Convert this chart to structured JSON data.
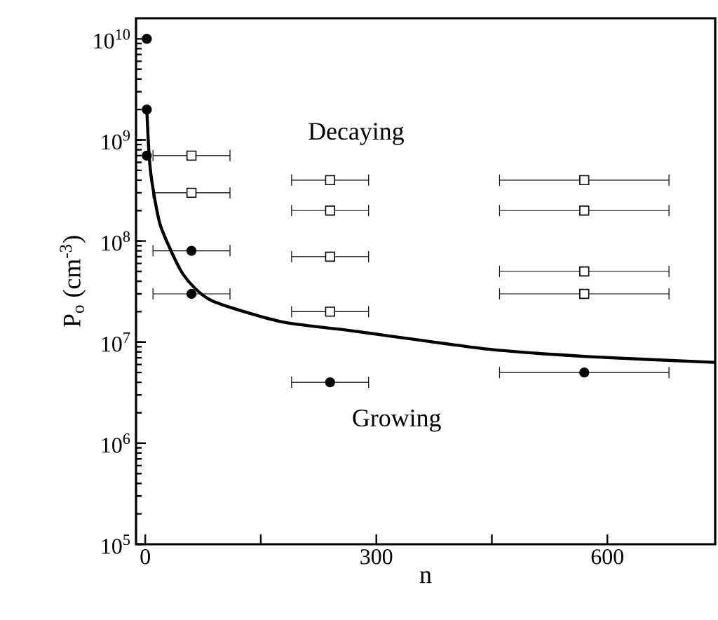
{
  "chart_data": {
    "type": "scatter",
    "xlabel": "n",
    "ylabel": "P$_{o}$ (cm$^{-3}$)",
    "log": "y",
    "xlim": [
      -12,
      740
    ],
    "ylim": [
      100000,
      16000000000
    ],
    "xticks": [
      0,
      {
        "value": 150,
        "label": null
      },
      300,
      {
        "value": 450,
        "label": null
      },
      600
    ],
    "yticks": [
      {
        "value": 100000,
        "label": "10$^{5}$"
      },
      {
        "value": 1000000,
        "label": "10$^{6}$"
      },
      {
        "value": 10000000,
        "label": "10$^{7}$"
      },
      {
        "value": 100000000,
        "label": "10$^{8}$"
      },
      {
        "value": 1000000000,
        "label": "10$^{9}$"
      },
      {
        "value": 10000000000,
        "label": "10$^{10}$"
      }
    ],
    "annotations": [
      "Decaying",
      "Growing"
    ],
    "series": [
      {
        "marker": "circle",
        "color": "#000000",
        "x": [
          2,
          2,
          2,
          60,
          60,
          240,
          570
        ],
        "values": [
          10000000000,
          2000000000,
          700000000,
          80000000,
          30000000,
          4000000,
          5000000
        ],
        "xerrors": [
          null,
          null,
          null,
          50,
          50,
          50,
          110
        ]
      },
      {
        "marker": "square",
        "color": "#000000",
        "x": [
          60,
          60,
          240,
          240,
          240,
          240,
          570,
          570,
          570,
          570
        ],
        "values": [
          700000000,
          300000000,
          400000000,
          200000000,
          70000000,
          20000000,
          400000000,
          200000000,
          50000000,
          30000000
        ],
        "xerrors": [
          50,
          50,
          50,
          50,
          50,
          50,
          110,
          110,
          110,
          110
        ]
      },
      {
        "type": "line",
        "marker": "none",
        "color": "#000000",
        "x": [
          2,
          5,
          9,
          20,
          49,
          85,
          175,
          266,
          446,
          573,
          739
        ],
        "values": [
          2000000000,
          700000000,
          370000000,
          140000000,
          47000000,
          26000000,
          16000000,
          13000000,
          8500000,
          7200000,
          6300000
        ]
      }
    ]
  }
}
